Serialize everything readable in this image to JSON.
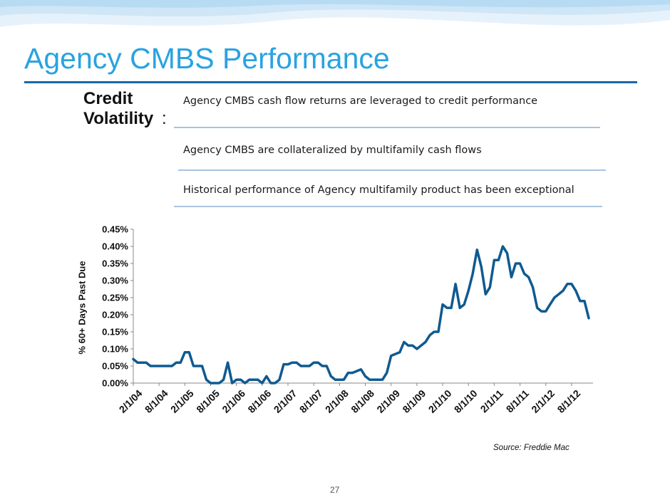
{
  "slide": {
    "title": "Agency CMBS Performance",
    "section_label_bold": "Credit Volatility",
    "section_label_suffix": ":",
    "bullets": [
      "Agency CMBS cash flow returns are leveraged to credit performance",
      "Agency CMBS are collateralized by multifamily cash flows",
      "Historical performance of Agency multifamily product has been exceptional"
    ],
    "source": "Source: Freddie Mac",
    "page_number": "27"
  },
  "colors": {
    "title": "#29a3e0",
    "title_rule": "#1b66a6",
    "line": "#0f5a91",
    "wave_light": "#cfe6f6",
    "wave_mid": "#8ec7ec"
  },
  "chart_data": {
    "type": "line",
    "ylabel": "% 60+ Days Past Due",
    "xlabel": "",
    "ylim": [
      0,
      0.45
    ],
    "y_ticks": [
      "0.00%",
      "0.05%",
      "0.10%",
      "0.15%",
      "0.20%",
      "0.25%",
      "0.30%",
      "0.35%",
      "0.40%",
      "0.45%"
    ],
    "x_range": [
      "2004-02",
      "2012-12"
    ],
    "x_ticks": [
      "2/1/04",
      "8/1/04",
      "2/1/05",
      "8/1/05",
      "2/1/06",
      "8/1/06",
      "2/1/07",
      "8/1/07",
      "2/1/08",
      "8/1/08",
      "2/1/09",
      "8/1/09",
      "2/1/10",
      "8/1/10",
      "2/1/11",
      "8/1/11",
      "2/1/12",
      "8/1/12"
    ],
    "grid": false,
    "series": [
      {
        "points": [
          [
            "2004-02",
            0.07
          ],
          [
            "2004-03",
            0.06
          ],
          [
            "2004-05",
            0.06
          ],
          [
            "2004-06",
            0.05
          ],
          [
            "2004-08",
            0.05
          ],
          [
            "2004-09",
            0.05
          ],
          [
            "2004-11",
            0.05
          ],
          [
            "2004-12",
            0.06
          ],
          [
            "2005-01",
            0.06
          ],
          [
            "2005-02",
            0.09
          ],
          [
            "2005-03",
            0.09
          ],
          [
            "2005-04",
            0.05
          ],
          [
            "2005-06",
            0.05
          ],
          [
            "2005-07",
            0.01
          ],
          [
            "2005-08",
            0.0
          ],
          [
            "2005-09",
            0.0
          ],
          [
            "2005-10",
            0.0
          ],
          [
            "2005-11",
            0.01
          ],
          [
            "2005-12",
            0.06
          ],
          [
            "2006-01",
            0.0
          ],
          [
            "2006-02",
            0.01
          ],
          [
            "2006-03",
            0.01
          ],
          [
            "2006-04",
            0.0
          ],
          [
            "2006-05",
            0.01
          ],
          [
            "2006-07",
            0.01
          ],
          [
            "2006-08",
            0.0
          ],
          [
            "2006-09",
            0.02
          ],
          [
            "2006-10",
            0.0
          ],
          [
            "2006-11",
            0.0
          ],
          [
            "2006-12",
            0.01
          ],
          [
            "2007-01",
            0.055
          ],
          [
            "2007-02",
            0.055
          ],
          [
            "2007-03",
            0.06
          ],
          [
            "2007-04",
            0.06
          ],
          [
            "2007-05",
            0.05
          ],
          [
            "2007-07",
            0.05
          ],
          [
            "2007-08",
            0.06
          ],
          [
            "2007-09",
            0.06
          ],
          [
            "2007-10",
            0.05
          ],
          [
            "2007-11",
            0.05
          ],
          [
            "2007-12",
            0.02
          ],
          [
            "2008-01",
            0.01
          ],
          [
            "2008-03",
            0.01
          ],
          [
            "2008-04",
            0.03
          ],
          [
            "2008-05",
            0.03
          ],
          [
            "2008-07",
            0.04
          ],
          [
            "2008-08",
            0.02
          ],
          [
            "2008-09",
            0.01
          ],
          [
            "2008-10",
            0.01
          ],
          [
            "2008-11",
            0.01
          ],
          [
            "2008-12",
            0.01
          ],
          [
            "2009-01",
            0.03
          ],
          [
            "2009-02",
            0.08
          ],
          [
            "2009-04",
            0.09
          ],
          [
            "2009-05",
            0.12
          ],
          [
            "2009-06",
            0.11
          ],
          [
            "2009-07",
            0.11
          ],
          [
            "2009-08",
            0.1
          ],
          [
            "2009-10",
            0.12
          ],
          [
            "2009-11",
            0.14
          ],
          [
            "2009-12",
            0.15
          ],
          [
            "2010-01",
            0.15
          ],
          [
            "2010-02",
            0.23
          ],
          [
            "2010-03",
            0.22
          ],
          [
            "2010-04",
            0.22
          ],
          [
            "2010-05",
            0.29
          ],
          [
            "2010-06",
            0.22
          ],
          [
            "2010-07",
            0.23
          ],
          [
            "2010-08",
            0.27
          ],
          [
            "2010-09",
            0.32
          ],
          [
            "2010-10",
            0.39
          ],
          [
            "2010-11",
            0.34
          ],
          [
            "2010-12",
            0.26
          ],
          [
            "2011-01",
            0.28
          ],
          [
            "2011-02",
            0.36
          ],
          [
            "2011-03",
            0.36
          ],
          [
            "2011-04",
            0.4
          ],
          [
            "2011-05",
            0.38
          ],
          [
            "2011-06",
            0.31
          ],
          [
            "2011-07",
            0.35
          ],
          [
            "2011-08",
            0.35
          ],
          [
            "2011-09",
            0.32
          ],
          [
            "2011-10",
            0.31
          ],
          [
            "2011-11",
            0.28
          ],
          [
            "2011-12",
            0.22
          ],
          [
            "2012-01",
            0.21
          ],
          [
            "2012-02",
            0.21
          ],
          [
            "2012-03",
            0.23
          ],
          [
            "2012-04",
            0.25
          ],
          [
            "2012-05",
            0.26
          ],
          [
            "2012-06",
            0.27
          ],
          [
            "2012-07",
            0.29
          ],
          [
            "2012-08",
            0.29
          ],
          [
            "2012-09",
            0.27
          ],
          [
            "2012-10",
            0.24
          ],
          [
            "2012-11",
            0.24
          ],
          [
            "2012-12",
            0.19
          ]
        ]
      }
    ]
  }
}
